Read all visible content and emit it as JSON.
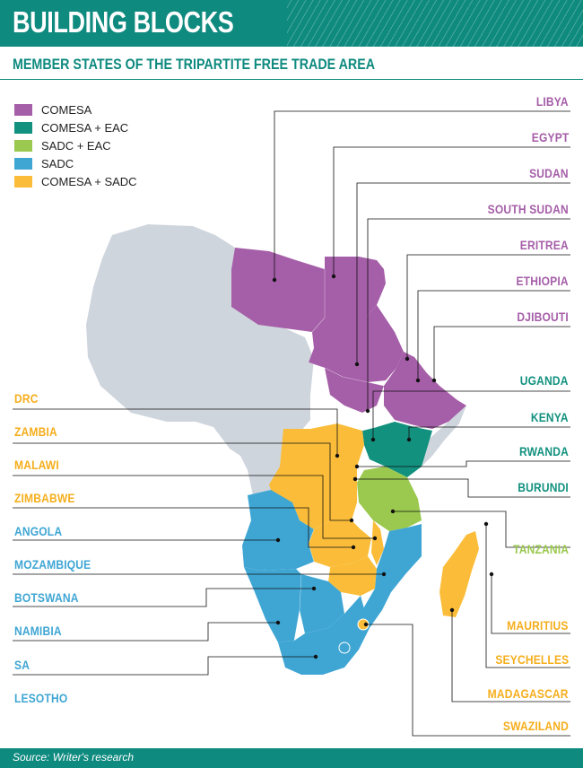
{
  "header": {
    "title": "BUILDING BLOCKS"
  },
  "subtitle": "MEMBER STATES OF THE TRIPARTITE FREE TRADE AREA",
  "legend": [
    {
      "label": "COMESA",
      "color": "#a55ea8"
    },
    {
      "label": "COMESA + EAC",
      "color": "#12917f"
    },
    {
      "label": "SADC + EAC",
      "color": "#9bc94f"
    },
    {
      "label": "SADC",
      "color": "#3fa6d4"
    },
    {
      "label": "COMESA + SADC",
      "color": "#fbbd39"
    }
  ],
  "colors": {
    "brand": "#0e8a7f",
    "rest_of_africa": "#cfd5dd"
  },
  "labels": {
    "libya": "LIBYA",
    "egypt": "EGYPT",
    "sudan": "SUDAN",
    "south_sudan": "SOUTH SUDAN",
    "eritrea": "ERITREA",
    "ethiopia": "ETHIOPIA",
    "djibouti": "DJIBOUTI",
    "uganda": "UGANDA",
    "kenya": "KENYA",
    "rwanda": "RWANDA",
    "burundi": "BURUNDI",
    "tanzania": "TANZANIA",
    "mauritius": "MAURITIUS",
    "seychelles": "SEYCHELLES",
    "madagascar": "MADAGASCAR",
    "swaziland": "SWAZILAND",
    "drc": "DRC",
    "zambia": "ZAMBIA",
    "malawi": "MALAWI",
    "zimbabwe": "ZIMBABWE",
    "angola": "ANGOLA",
    "mozambique": "MOZAMBIQUE",
    "botswana": "BOTSWANA",
    "namibia": "NAMIBIA",
    "sa": "SA",
    "lesotho": "LESOTHO"
  },
  "footer": {
    "source": "Source: Writer's research"
  }
}
